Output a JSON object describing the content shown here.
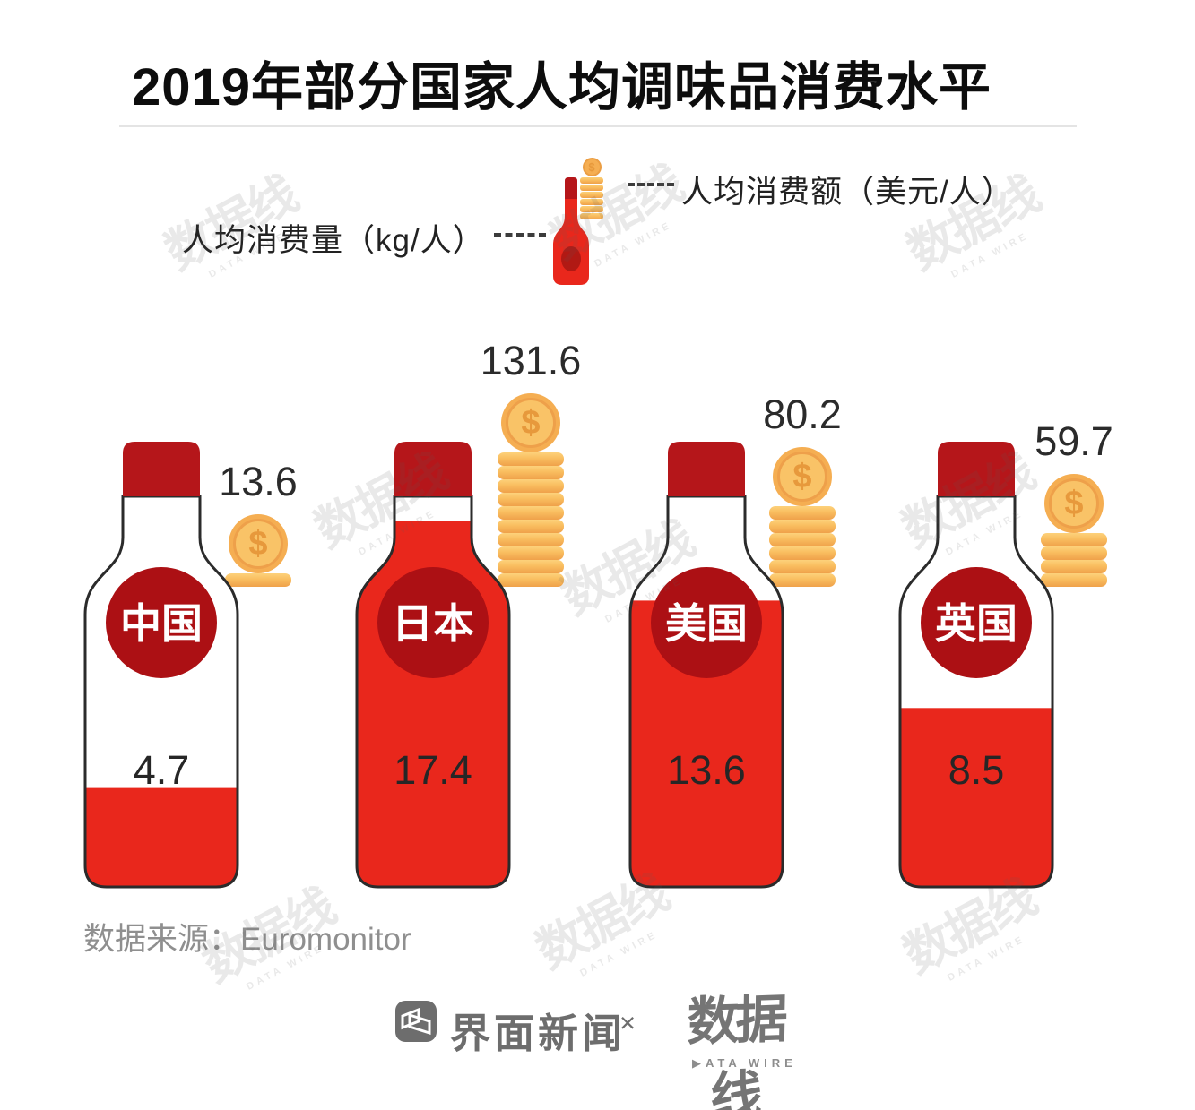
{
  "title": "2019年部分国家人均调味品消费水平",
  "legend": {
    "quantity_label": "人均消费量（kg/人）",
    "amount_label": "人均消费额（美元/人）"
  },
  "countries": [
    {
      "name": "中国",
      "quantity": 4.7,
      "quantity_label": "4.7",
      "amount": 13.6,
      "amount_label": "13.6",
      "coin_count": 1
    },
    {
      "name": "日本",
      "quantity": 17.4,
      "quantity_label": "17.4",
      "amount": 131.6,
      "amount_label": "131.6",
      "coin_count": 10
    },
    {
      "name": "美国",
      "quantity": 13.6,
      "quantity_label": "13.6",
      "amount": 80.2,
      "amount_label": "80.2",
      "coin_count": 6
    },
    {
      "name": "英国",
      "quantity": 8.5,
      "quantity_label": "8.5",
      "amount": 59.7,
      "amount_label": "59.7",
      "coin_count": 4
    }
  ],
  "source": "数据来源：Euromonitor",
  "footer": {
    "left_brand": "界面新闻",
    "separator": "×",
    "right_brand": "数据线",
    "right_brand_sub": "▶ATA WIRE"
  },
  "watermark": {
    "text": "数据线",
    "sub": "DATA WIRE"
  },
  "colors": {
    "bright_red": "#e9271c",
    "cap_red": "#b5161a",
    "circle_red": "#ac1014",
    "bottle_outline": "#2b2b2b",
    "coin_face": "#f9c367",
    "coin_edge": "#eea04a",
    "gray_text": "#8f8f8f",
    "footer_gray": "#6d6d6d"
  },
  "chart_data": {
    "type": "bar",
    "title": "2019年部分国家人均调味品消费水平",
    "categories": [
      "中国",
      "日本",
      "美国",
      "英国"
    ],
    "series": [
      {
        "name": "人均消费量（kg/人）",
        "values": [
          4.7,
          17.4,
          13.6,
          8.5
        ]
      },
      {
        "name": "人均消费额（美元/人）",
        "values": [
          13.6,
          131.6,
          80.2,
          59.7
        ]
      }
    ],
    "source": "Euromonitor",
    "legend_position": "top",
    "grid": false,
    "representation": "bottle fill level = consumption kg per capita; coin stack height = consumption USD per capita"
  }
}
